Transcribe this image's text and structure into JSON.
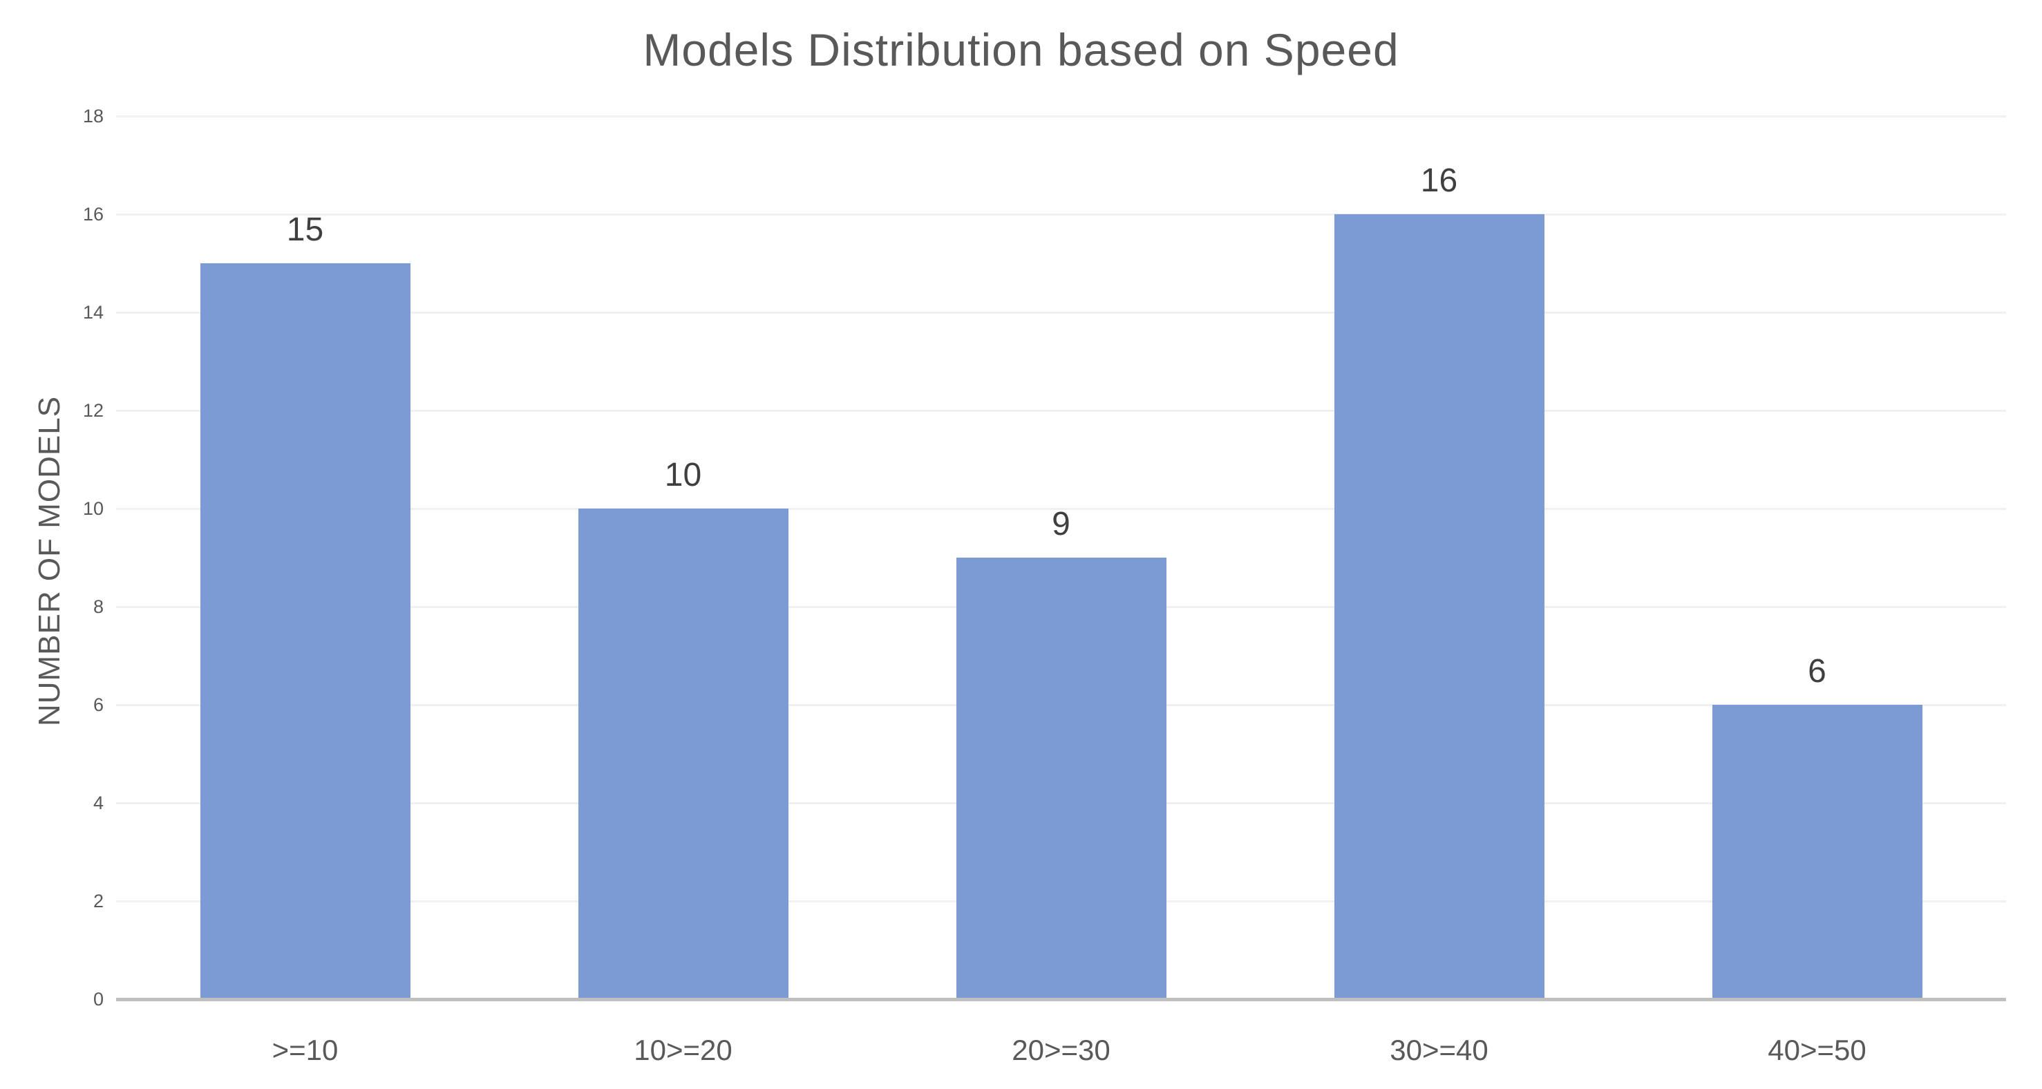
{
  "chart_data": {
    "type": "bar",
    "title": "Models Distribution based on Speed",
    "categories": [
      ">=10",
      "10>=20",
      "20>=30",
      "30>=40",
      "40>=50"
    ],
    "values": [
      15,
      10,
      9,
      16,
      6
    ],
    "data_labels": [
      "15",
      "10",
      "9",
      "16",
      "6"
    ],
    "xlabel": "",
    "ylabel": "NUMBER OF MODELS",
    "ylim": [
      0,
      18
    ],
    "yticks": [
      0,
      2,
      4,
      6,
      8,
      10,
      12,
      14,
      16,
      18
    ],
    "grid": "horizontal",
    "legend": "none",
    "colors": {
      "bar": "#7C9AD4",
      "title_text": "#595959",
      "axis_text": "#595959",
      "data_label_text": "#3F3F3F",
      "gridline": "#F0F0F0",
      "axis_line": "#BFBFBF",
      "background": "#FFFFFF"
    }
  }
}
